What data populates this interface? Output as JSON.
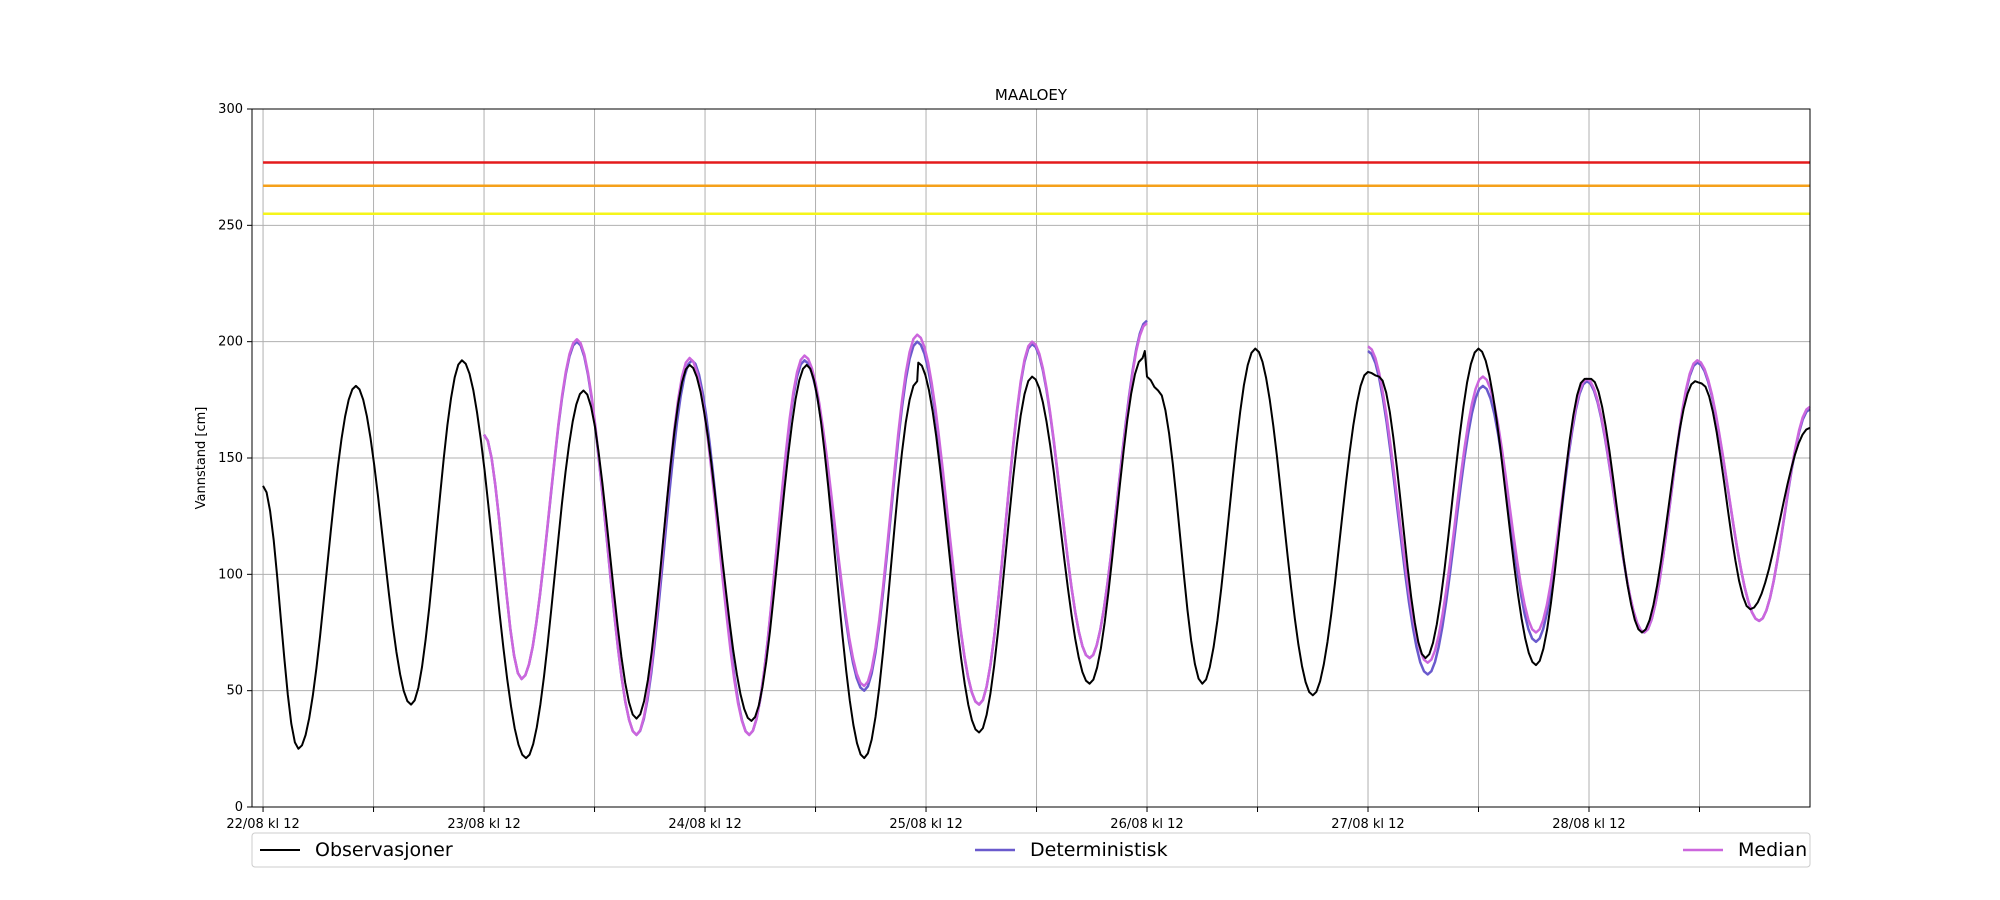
{
  "chart_data": {
    "type": "line",
    "title": "MAALOEY",
    "ylabel": "Vannstand [cm]",
    "xlabel": "",
    "ylim": [
      0,
      300
    ],
    "xlim": [
      -0.05,
      7.0
    ],
    "x_unit": "days after 22/08 kl 12",
    "yticks": [
      0,
      50,
      100,
      150,
      200,
      250,
      300
    ],
    "xtick_labels": [
      "22/08 kl 12",
      "23/08 kl 12",
      "24/08 kl 12",
      "25/08 kl 12",
      "26/08 kl 12",
      "27/08 kl 12",
      "28/08 kl 12"
    ],
    "grid": true,
    "legend_position": "bottom-outside",
    "thresholds": [
      {
        "value": 277,
        "color": "#e41a1c"
      },
      {
        "value": 267,
        "color": "#f5a01a"
      },
      {
        "value": 255,
        "color": "#f5f51a"
      }
    ],
    "series": [
      {
        "name": "Observasjoner",
        "color": "#000000",
        "points": [
          [
            0.0,
            138
          ],
          [
            0.16,
            25
          ],
          [
            0.42,
            181
          ],
          [
            0.67,
            44
          ],
          [
            0.9,
            192
          ],
          [
            1.19,
            21
          ],
          [
            1.45,
            179
          ],
          [
            1.69,
            38
          ],
          [
            1.93,
            190
          ],
          [
            2.21,
            37
          ],
          [
            2.46,
            190
          ],
          [
            2.72,
            21
          ],
          [
            2.96,
            183
          ],
          [
            2.965,
            191
          ],
          [
            3.24,
            32
          ],
          [
            3.48,
            185
          ],
          [
            3.74,
            53
          ],
          [
            3.98,
            193
          ],
          [
            3.99,
            196
          ],
          [
            4.0,
            185
          ],
          [
            4.05,
            179
          ],
          [
            4.25,
            53
          ],
          [
            4.49,
            197
          ],
          [
            4.75,
            48
          ],
          [
            5.0,
            187
          ],
          [
            5.05,
            185
          ],
          [
            5.26,
            64
          ],
          [
            5.5,
            197
          ],
          [
            5.76,
            61
          ],
          [
            5.98,
            184
          ],
          [
            6.01,
            184
          ],
          [
            6.24,
            75
          ],
          [
            6.48,
            183
          ],
          [
            6.51,
            182
          ],
          [
            6.73,
            85
          ],
          [
            7.0,
            163
          ]
        ]
      },
      {
        "name": "Deterministisk",
        "color": "#6a5acd",
        "segments": [
          [
            [
              1.0,
              160
            ],
            [
              1.17,
              55
            ],
            [
              1.42,
              200
            ],
            [
              1.69,
              31
            ],
            [
              1.94,
              192
            ],
            [
              2.2,
              31
            ],
            [
              2.45,
              192
            ],
            [
              2.72,
              50
            ],
            [
              2.96,
              200
            ],
            [
              3.24,
              44
            ],
            [
              3.48,
              199
            ],
            [
              3.74,
              64
            ],
            [
              4.0,
              209
            ]
          ],
          [
            [
              5.0,
              196
            ],
            [
              5.27,
              57
            ],
            [
              5.52,
              181
            ],
            [
              5.76,
              71
            ],
            [
              5.99,
              183
            ],
            [
              6.25,
              75
            ],
            [
              6.49,
              191
            ],
            [
              6.77,
              80
            ],
            [
              7.0,
              171
            ]
          ]
        ]
      },
      {
        "name": "Median",
        "color": "#cc66dd",
        "segments": [
          [
            [
              1.0,
              160
            ],
            [
              1.17,
              55
            ],
            [
              1.42,
              201
            ],
            [
              1.69,
              31
            ],
            [
              1.93,
              193
            ],
            [
              2.2,
              31
            ],
            [
              2.45,
              194
            ],
            [
              2.72,
              52
            ],
            [
              2.96,
              203
            ],
            [
              3.24,
              44
            ],
            [
              3.48,
              200
            ],
            [
              3.74,
              64
            ],
            [
              4.0,
              208
            ]
          ],
          [
            [
              5.0,
              198
            ],
            [
              5.27,
              62
            ],
            [
              5.52,
              185
            ],
            [
              5.76,
              75
            ],
            [
              5.99,
              184
            ],
            [
              6.25,
              75
            ],
            [
              6.49,
              192
            ],
            [
              6.77,
              80
            ],
            [
              7.0,
              172
            ]
          ]
        ]
      }
    ]
  }
}
